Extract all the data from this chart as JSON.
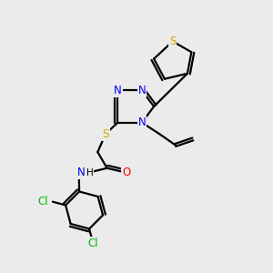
{
  "background_color": "#ebebeb",
  "bond_color": "#000000",
  "bond_width": 1.6,
  "atom_colors": {
    "N": "#0000ff",
    "S": "#ccaa00",
    "O": "#ff0000",
    "Cl": "#00bb00",
    "C": "#000000",
    "H": "#000000"
  },
  "font_size": 8.5,
  "fig_size": [
    3.0,
    3.0
  ],
  "dpi": 100
}
